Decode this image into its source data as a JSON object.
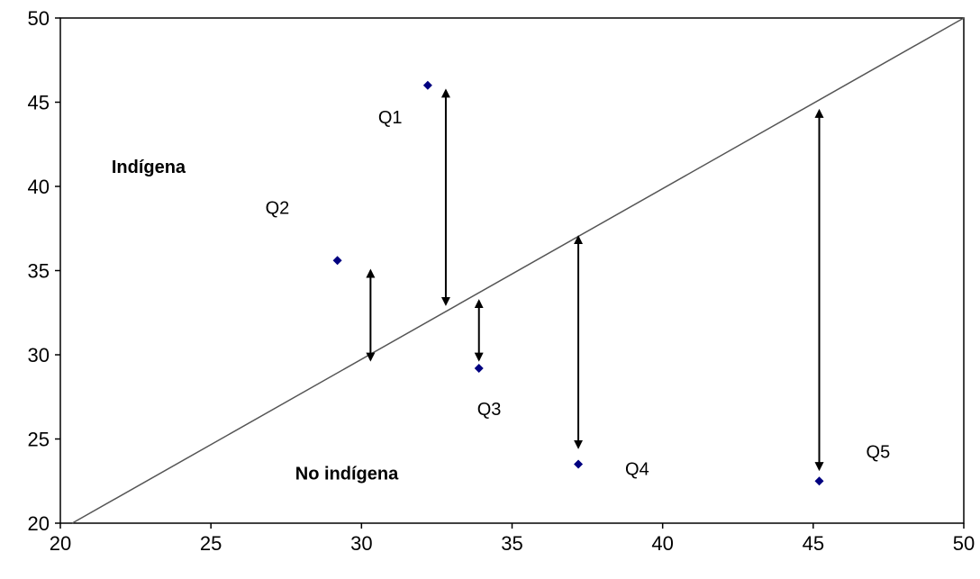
{
  "chart_data": {
    "type": "scatter",
    "title": "",
    "xlabel": "",
    "ylabel": "",
    "xlim": [
      20,
      50
    ],
    "ylim": [
      20,
      50
    ],
    "x_ticks": [
      "20",
      "25",
      "30",
      "35",
      "40",
      "45",
      "50"
    ],
    "y_ticks": [
      "20",
      "25",
      "30",
      "35",
      "40",
      "45",
      "50"
    ],
    "grid": false,
    "legend": "none",
    "points": [
      {
        "label": "Q1",
        "x": 32.2,
        "y": 46.0
      },
      {
        "label": "Q2",
        "x": 29.2,
        "y": 35.6
      },
      {
        "label": "Q3",
        "x": 33.9,
        "y": 29.2
      },
      {
        "label": "Q4",
        "x": 37.2,
        "y": 23.5
      },
      {
        "label": "Q5",
        "x": 45.2,
        "y": 22.5
      }
    ],
    "reference_line": {
      "x": [
        20,
        50
      ],
      "y": [
        19.6,
        50
      ]
    },
    "arrows": [
      {
        "x": 32.8,
        "y_top": 45.7,
        "y_bottom": 33.0
      },
      {
        "x": 30.3,
        "y_top": 35.0,
        "y_bottom": 29.7
      },
      {
        "x": 33.9,
        "y_top": 33.2,
        "y_bottom": 29.7
      },
      {
        "x": 37.2,
        "y_top": 37.0,
        "y_bottom": 24.5
      },
      {
        "x": 45.2,
        "y_top": 44.5,
        "y_bottom": 23.2
      }
    ],
    "region_labels": [
      {
        "text": "Indígena",
        "x": 21.7,
        "y": 40.8
      },
      {
        "text": "No indígena",
        "x": 27.8,
        "y": 22.6
      }
    ],
    "colors": {
      "marker": "#000080",
      "line": "#000000",
      "axis": "#000000"
    }
  }
}
